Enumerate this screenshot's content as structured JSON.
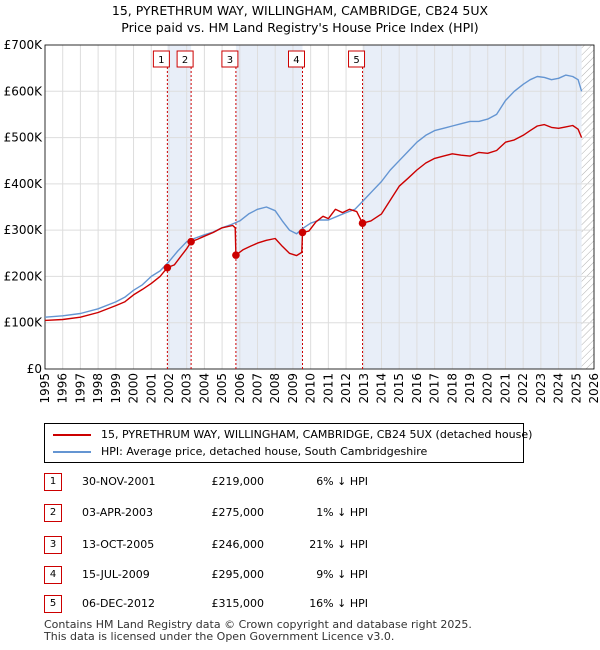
{
  "title_line1": "15, PYRETHRUM WAY, WILLINGHAM, CAMBRIDGE, CB24 5UX",
  "title_line2": "Price paid vs. HM Land Registry's House Price Index (HPI)",
  "colors": {
    "property": "#cc0000",
    "hpi": "#6495d2",
    "shade": "#e8eef8",
    "grid": "#dddddd"
  },
  "legend": {
    "property_label": "15, PYRETHRUM WAY, WILLINGHAM, CAMBRIDGE, CB24 5UX (detached house)",
    "hpi_label": "HPI: Average price, detached house, South Cambridgeshire"
  },
  "sales": [
    {
      "num": "1",
      "date": "30-NOV-2001",
      "price": "£219,000",
      "hpi": "6% ↓ HPI"
    },
    {
      "num": "2",
      "date": "03-APR-2003",
      "price": "£275,000",
      "hpi": "1% ↓ HPI"
    },
    {
      "num": "3",
      "date": "13-OCT-2005",
      "price": "£246,000",
      "hpi": "21% ↓ HPI"
    },
    {
      "num": "4",
      "date": "15-JUL-2009",
      "price": "£295,000",
      "hpi": "9% ↓ HPI"
    },
    {
      "num": "5",
      "date": "06-DEC-2012",
      "price": "£315,000",
      "hpi": "16% ↓ HPI"
    }
  ],
  "footer": {
    "line1": "Contains HM Land Registry data © Crown copyright and database right 2025.",
    "line2": "This data is licensed under the Open Government Licence v3.0."
  },
  "chart_data": {
    "type": "line",
    "title": "15, PYRETHRUM WAY, WILLINGHAM, CAMBRIDGE, CB24 5UX Price paid vs. HM Land Registry's House Price Index (HPI)",
    "xlim": [
      1995,
      2026
    ],
    "ylim": [
      0,
      700000
    ],
    "x_ticks": [
      1995,
      1996,
      1997,
      1998,
      1999,
      2000,
      2001,
      2002,
      2003,
      2004,
      2005,
      2006,
      2007,
      2008,
      2009,
      2010,
      2011,
      2012,
      2013,
      2014,
      2015,
      2016,
      2017,
      2018,
      2019,
      2020,
      2021,
      2022,
      2023,
      2024,
      2025,
      2026
    ],
    "y_ticks": [
      {
        "value": 0,
        "label": "£0"
      },
      {
        "value": 100000,
        "label": "£100K"
      },
      {
        "value": 200000,
        "label": "£200K"
      },
      {
        "value": 300000,
        "label": "£300K"
      },
      {
        "value": 400000,
        "label": "£400K"
      },
      {
        "value": 500000,
        "label": "£500K"
      },
      {
        "value": 600000,
        "label": "£600K"
      },
      {
        "value": 700000,
        "label": "£700K"
      }
    ],
    "grid": true,
    "legend_position": "below",
    "sale_markers": [
      {
        "label": "1",
        "x": 2001.91,
        "y": 219000
      },
      {
        "label": "2",
        "x": 2003.25,
        "y": 275000
      },
      {
        "label": "3",
        "x": 2005.78,
        "y": 246000
      },
      {
        "label": "4",
        "x": 2009.54,
        "y": 295000
      },
      {
        "label": "5",
        "x": 2012.93,
        "y": 315000
      }
    ],
    "shaded_spans": [
      [
        2001.91,
        2003.25
      ],
      [
        2005.78,
        2009.54
      ],
      [
        2012.93,
        2025.3
      ]
    ],
    "future_hatch_from": 2025.3,
    "series": [
      {
        "name": "15, PYRETHRUM WAY, WILLINGHAM, CAMBRIDGE, CB24 5UX (detached house)",
        "color": "#cc0000",
        "x": [
          1995,
          1996,
          1997,
          1998,
          1999,
          1999.5,
          2000,
          2000.5,
          2001,
          2001.5,
          2001.91,
          2002.3,
          2002.7,
          2003.0,
          2003.25,
          2003.6,
          2004,
          2004.5,
          2005,
          2005.6,
          2005.74,
          2005.78,
          2006.2,
          2006.6,
          2007,
          2007.5,
          2008,
          2008.4,
          2008.8,
          2009.2,
          2009.5,
          2009.54,
          2009.9,
          2010.3,
          2010.7,
          2011,
          2011.4,
          2011.8,
          2012.2,
          2012.6,
          2012.93,
          2013.4,
          2014,
          2014.5,
          2015,
          2015.5,
          2016,
          2016.5,
          2017,
          2017.5,
          2018,
          2018.5,
          2019,
          2019.5,
          2020,
          2020.5,
          2021,
          2021.5,
          2022,
          2022.4,
          2022.8,
          2023.2,
          2023.6,
          2024,
          2024.4,
          2024.8,
          2025.1,
          2025.3
        ],
        "y": [
          105000,
          107000,
          112000,
          122000,
          137000,
          145000,
          160000,
          172000,
          185000,
          200000,
          219000,
          225000,
          245000,
          260000,
          275000,
          280000,
          287000,
          295000,
          305000,
          310000,
          305000,
          246000,
          258000,
          265000,
          272000,
          278000,
          282000,
          265000,
          250000,
          245000,
          252000,
          295000,
          298000,
          318000,
          330000,
          325000,
          345000,
          338000,
          345000,
          340000,
          315000,
          320000,
          335000,
          365000,
          395000,
          412000,
          430000,
          445000,
          455000,
          460000,
          465000,
          462000,
          460000,
          468000,
          466000,
          472000,
          490000,
          495000,
          505000,
          515000,
          525000,
          528000,
          522000,
          520000,
          523000,
          526000,
          518000,
          500000
        ]
      },
      {
        "name": "HPI: Average price, detached house, South Cambridgeshire",
        "color": "#6495d2",
        "x": [
          1995,
          1996,
          1997,
          1998,
          1999,
          1999.5,
          2000,
          2000.5,
          2001,
          2001.5,
          2002,
          2002.5,
          2003,
          2003.5,
          2004,
          2004.5,
          2005,
          2005.5,
          2006,
          2006.5,
          2007,
          2007.5,
          2008,
          2008.4,
          2008.8,
          2009.2,
          2009.6,
          2010,
          2010.5,
          2011,
          2011.5,
          2012,
          2012.5,
          2013,
          2013.5,
          2014,
          2014.5,
          2015,
          2015.5,
          2016,
          2016.5,
          2017,
          2017.5,
          2018,
          2018.5,
          2019,
          2019.5,
          2020,
          2020.5,
          2021,
          2021.5,
          2022,
          2022.4,
          2022.8,
          2023.2,
          2023.6,
          2024,
          2024.4,
          2024.8,
          2025.1,
          2025.3
        ],
        "y": [
          112000,
          115000,
          120000,
          130000,
          145000,
          155000,
          170000,
          182000,
          200000,
          212000,
          232000,
          255000,
          275000,
          283000,
          290000,
          296000,
          305000,
          312000,
          320000,
          335000,
          345000,
          350000,
          342000,
          320000,
          300000,
          292000,
          305000,
          315000,
          322000,
          322000,
          330000,
          338000,
          345000,
          365000,
          385000,
          405000,
          430000,
          450000,
          470000,
          490000,
          505000,
          515000,
          520000,
          525000,
          530000,
          535000,
          535000,
          540000,
          550000,
          580000,
          600000,
          615000,
          625000,
          632000,
          630000,
          625000,
          628000,
          635000,
          632000,
          625000,
          600000
        ]
      }
    ]
  }
}
